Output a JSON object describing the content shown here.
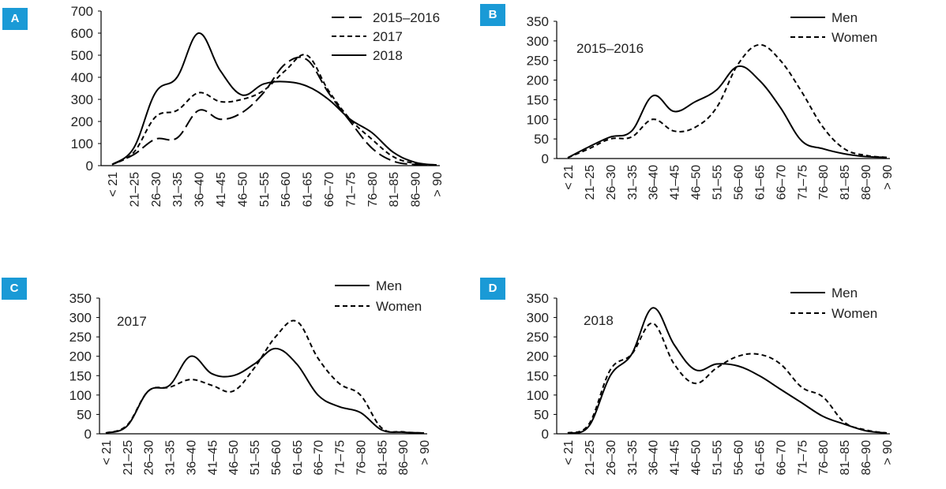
{
  "colors": {
    "panel_badge": "#1a9ad6",
    "line": "#000000"
  },
  "panels": [
    {
      "letter": "A"
    },
    {
      "letter": "B"
    },
    {
      "letter": "C"
    },
    {
      "letter": "D"
    }
  ],
  "chart_data": [
    {
      "type": "line",
      "panel": "A",
      "title": "",
      "categories": [
        "< 21",
        "21–25",
        "26–30",
        "31–35",
        "36–40",
        "41–45",
        "46–50",
        "51–55",
        "56–60",
        "61–65",
        "66–70",
        "71–75",
        "76–80",
        "81–85",
        "86–90",
        "> 90"
      ],
      "ylim": [
        0,
        700
      ],
      "yticks": [
        0,
        100,
        200,
        300,
        400,
        500,
        600,
        700
      ],
      "legend_position": "top-right",
      "series": [
        {
          "name": "2015–2016",
          "dash": "long",
          "values": [
            5,
            50,
            120,
            125,
            250,
            210,
            240,
            330,
            460,
            480,
            330,
            200,
            80,
            20,
            5,
            2
          ]
        },
        {
          "name": "2017",
          "dash": "short",
          "values": [
            5,
            60,
            220,
            250,
            330,
            290,
            300,
            340,
            430,
            500,
            340,
            210,
            120,
            40,
            10,
            2
          ]
        },
        {
          "name": "2018",
          "dash": "solid",
          "values": [
            5,
            80,
            330,
            400,
            600,
            430,
            320,
            370,
            380,
            360,
            300,
            210,
            150,
            60,
            15,
            3
          ]
        }
      ]
    },
    {
      "type": "line",
      "panel": "B",
      "title": "2015–2016",
      "categories": [
        "< 21",
        "21–25",
        "26–30",
        "31–35",
        "36–40",
        "41–45",
        "46–50",
        "51–55",
        "56–60",
        "61–65",
        "66–70",
        "71–75",
        "76–80",
        "81–85",
        "86–90",
        "> 90"
      ],
      "ylim": [
        0,
        350
      ],
      "yticks": [
        0,
        50,
        100,
        150,
        200,
        250,
        300,
        350
      ],
      "legend_position": "top-right",
      "series": [
        {
          "name": "Men",
          "dash": "solid",
          "values": [
            2,
            30,
            55,
            70,
            160,
            120,
            145,
            175,
            235,
            200,
            130,
            45,
            25,
            12,
            5,
            3
          ]
        },
        {
          "name": "Women",
          "dash": "short",
          "values": [
            2,
            25,
            50,
            55,
            100,
            70,
            80,
            130,
            240,
            290,
            250,
            170,
            80,
            25,
            8,
            3
          ]
        }
      ]
    },
    {
      "type": "line",
      "panel": "C",
      "title": "2017",
      "categories": [
        "< 21",
        "21–25",
        "26–30",
        "31–35",
        "36–40",
        "41–45",
        "46–50",
        "51–55",
        "56–60",
        "61–65",
        "66–70",
        "71–75",
        "76–80",
        "81–85",
        "86–90",
        "> 90"
      ],
      "ylim": [
        0,
        350
      ],
      "yticks": [
        0,
        50,
        100,
        150,
        200,
        250,
        300,
        350
      ],
      "legend_position": "top-right",
      "series": [
        {
          "name": "Men",
          "dash": "solid",
          "values": [
            2,
            20,
            110,
            125,
            200,
            155,
            150,
            180,
            220,
            180,
            100,
            70,
            55,
            10,
            4,
            2
          ]
        },
        {
          "name": "Women",
          "dash": "short",
          "values": [
            2,
            22,
            110,
            120,
            140,
            125,
            110,
            170,
            250,
            290,
            195,
            130,
            100,
            15,
            5,
            2
          ]
        }
      ]
    },
    {
      "type": "line",
      "panel": "D",
      "title": "2018",
      "categories": [
        "< 21",
        "21–25",
        "26–30",
        "31–35",
        "36–40",
        "41–45",
        "46–50",
        "51–55",
        "56–60",
        "61–65",
        "66–70",
        "71–75",
        "76–80",
        "81–85",
        "86–90",
        "> 90"
      ],
      "ylim": [
        0,
        350
      ],
      "yticks": [
        0,
        50,
        100,
        150,
        200,
        250,
        300,
        350
      ],
      "legend_position": "top-right",
      "series": [
        {
          "name": "Men",
          "dash": "solid",
          "values": [
            2,
            20,
            150,
            205,
            325,
            230,
            165,
            180,
            175,
            150,
            115,
            80,
            45,
            25,
            8,
            2
          ]
        },
        {
          "name": "Women",
          "dash": "short",
          "values": [
            2,
            25,
            165,
            205,
            285,
            180,
            130,
            170,
            200,
            205,
            180,
            120,
            95,
            30,
            10,
            2
          ]
        }
      ]
    }
  ]
}
